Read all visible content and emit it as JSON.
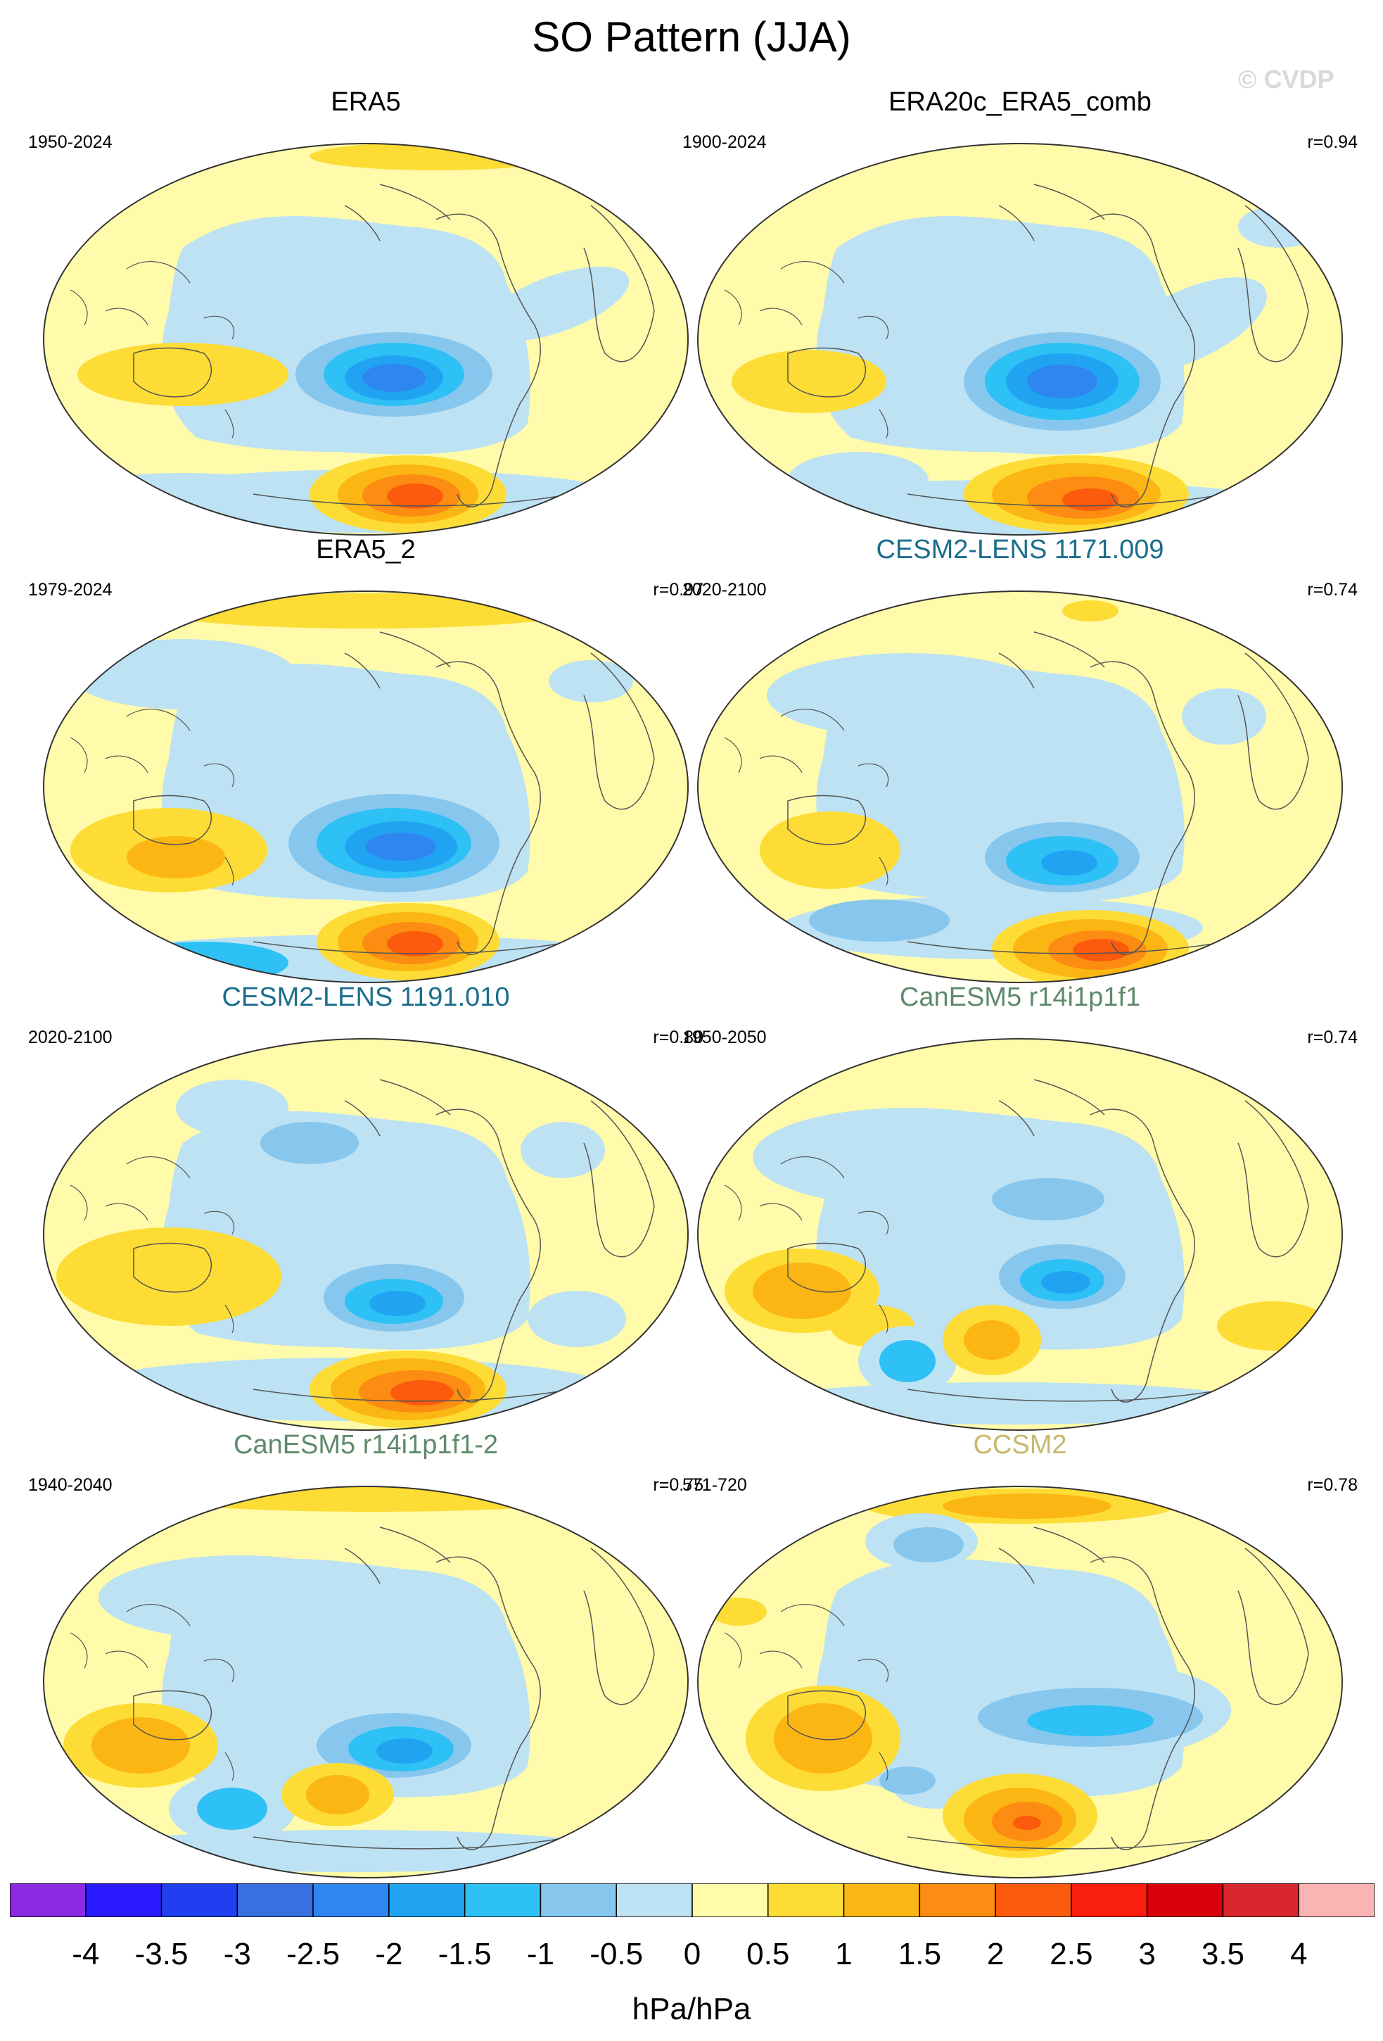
{
  "title": "SO Pattern (JJA)",
  "watermark": "© CVDP",
  "panels": [
    {
      "title": "ERA5",
      "period": "1950-2024",
      "corr": "",
      "title_color": "#000000",
      "variant": 0
    },
    {
      "title": "ERA20c_ERA5_comb",
      "period": "1900-2024",
      "corr": "r=0.94",
      "title_color": "#000000",
      "variant": 1
    },
    {
      "title": "ERA5_2",
      "period": "1979-2024",
      "corr": "r=0.97",
      "title_color": "#000000",
      "variant": 2
    },
    {
      "title": "CESM2-LENS 1171.009",
      "period": "2020-2100",
      "corr": "r=0.74",
      "title_color": "#1a6e8c",
      "variant": 3
    },
    {
      "title": "CESM2-LENS 1191.010",
      "period": "2020-2100",
      "corr": "r=0.80",
      "title_color": "#1a6e8c",
      "variant": 4
    },
    {
      "title": "CanESM5 r14i1p1f1",
      "period": "1950-2050",
      "corr": "r=0.74",
      "title_color": "#5f8a6b",
      "variant": 5
    },
    {
      "title": "CanESM5 r14i1p1f1-2",
      "period": "1940-2040",
      "corr": "r=0.75",
      "title_color": "#5f8a6b",
      "variant": 6
    },
    {
      "title": "CCSM2",
      "period": "571-720",
      "corr": "r=0.78",
      "title_color": "#c8b96a",
      "variant": 7
    }
  ],
  "colorbar": {
    "colors": [
      "#8a2be2",
      "#2a1aff",
      "#1f3ff0",
      "#3a6fe0",
      "#2e86f0",
      "#20a4f2",
      "#2ec1f5",
      "#87c7ee",
      "#bde2f4",
      "#fffbaa",
      "#fddc35",
      "#fcb614",
      "#fc8c12",
      "#fc5a0c",
      "#fa1e0e",
      "#d9000c",
      "#d8282e",
      "#fbb4b4"
    ],
    "ticks": [
      "-4",
      "-3.5",
      "-3",
      "-2.5",
      "-2",
      "-1.5",
      "-1",
      "-0.5",
      "0",
      "0.5",
      "1",
      "1.5",
      "2",
      "2.5",
      "3",
      "3.5",
      "4"
    ],
    "units": "hPa/hPa"
  }
}
